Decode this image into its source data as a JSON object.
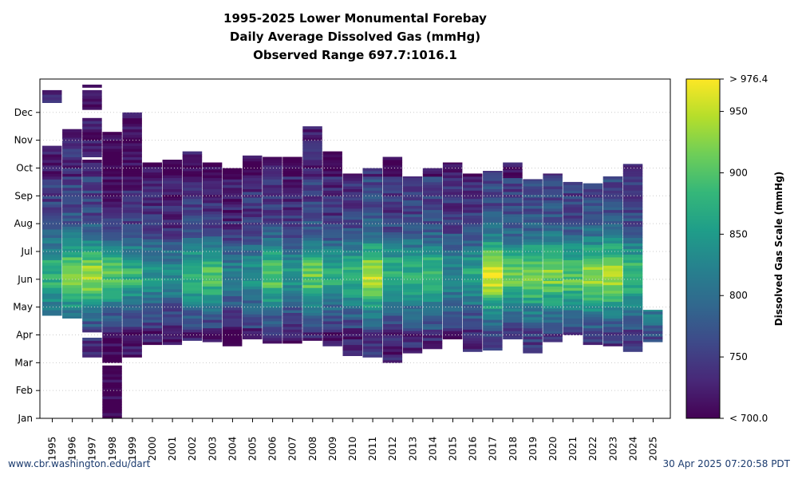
{
  "chart_data": {
    "type": "heatmap",
    "title": [
      "1995-2025 Lower Monumental Forebay",
      "Daily Average Dissolved Gas (mmHg)",
      "Observed Range 697.7:1016.1"
    ],
    "x_categories": [
      "1995",
      "1996",
      "1997",
      "1998",
      "1999",
      "2000",
      "2001",
      "2002",
      "2003",
      "2004",
      "2005",
      "2006",
      "2007",
      "2008",
      "2009",
      "2010",
      "2011",
      "2012",
      "2013",
      "2014",
      "2015",
      "2016",
      "2017",
      "2018",
      "2019",
      "2020",
      "2021",
      "2022",
      "2023",
      "2024",
      "2025"
    ],
    "y_ticks": [
      "Jan",
      "Feb",
      "Mar",
      "Apr",
      "May",
      "Jun",
      "Jul",
      "Aug",
      "Sep",
      "Oct",
      "Nov",
      "Dec"
    ],
    "grid": true,
    "colorbar": {
      "label": "Dissolved Gas Scale (mmHg)",
      "min": 700,
      "max": 976.4,
      "ticks": [
        750,
        800,
        850,
        900,
        950
      ],
      "min_label": "< 700.0",
      "max_label": "> 976.4",
      "colormap": [
        "#440154",
        "#482878",
        "#3e4989",
        "#31688e",
        "#26828e",
        "#1f9e89",
        "#35b779",
        "#6ece58",
        "#b5de2b",
        "#fde725"
      ]
    },
    "years": [
      {
        "year": "1995",
        "start_month": 3.7,
        "end_month": 9.8,
        "base": 790,
        "peak": 880,
        "extra": [
          [
            11.35,
            11.8
          ]
        ]
      },
      {
        "year": "1996",
        "start_month": 3.6,
        "end_month": 10.4,
        "base": 800,
        "peak": 925
      },
      {
        "year": "1997",
        "start_month": 2.2,
        "end_month": 12.0,
        "base": 790,
        "peak": 935,
        "gaps": [
          [
            2.9,
            3.05
          ],
          [
            9.2,
            9.35
          ],
          [
            10.7,
            11.05
          ],
          [
            11.75,
            11.85
          ]
        ]
      },
      {
        "year": "1998",
        "start_month": 0.0,
        "end_month": 10.3,
        "base": 760,
        "peak": 905,
        "gaps": [
          [
            1.85,
            2.0
          ]
        ]
      },
      {
        "year": "1999",
        "start_month": 2.2,
        "end_month": 11.0,
        "base": 770,
        "peak": 880
      },
      {
        "year": "2000",
        "start_month": 2.65,
        "end_month": 9.2,
        "base": 770,
        "peak": 845
      },
      {
        "year": "2001",
        "start_month": 2.65,
        "end_month": 9.3,
        "base": 760,
        "peak": 830
      },
      {
        "year": "2002",
        "start_month": 2.8,
        "end_month": 9.6,
        "base": 780,
        "peak": 880
      },
      {
        "year": "2003",
        "start_month": 2.75,
        "end_month": 9.2,
        "base": 770,
        "peak": 900
      },
      {
        "year": "2004",
        "start_month": 2.6,
        "end_month": 9.0,
        "base": 760,
        "peak": 820
      },
      {
        "year": "2005",
        "start_month": 2.85,
        "end_month": 9.45,
        "base": 780,
        "peak": 840
      },
      {
        "year": "2006",
        "start_month": 2.7,
        "end_month": 9.4,
        "base": 780,
        "peak": 900
      },
      {
        "year": "2007",
        "start_month": 2.7,
        "end_month": 9.4,
        "base": 770,
        "peak": 850
      },
      {
        "year": "2008",
        "start_month": 2.8,
        "end_month": 10.5,
        "base": 790,
        "peak": 910
      },
      {
        "year": "2009",
        "start_month": 2.6,
        "end_month": 9.6,
        "base": 770,
        "peak": 870
      },
      {
        "year": "2010",
        "start_month": 2.25,
        "end_month": 8.8,
        "base": 780,
        "peak": 880
      },
      {
        "year": "2011",
        "start_month": 2.2,
        "end_month": 9.0,
        "base": 800,
        "peak": 945
      },
      {
        "year": "2012",
        "start_month": 2.0,
        "end_month": 9.4,
        "base": 780,
        "peak": 880
      },
      {
        "year": "2013",
        "start_month": 2.35,
        "end_month": 8.7,
        "base": 790,
        "peak": 870
      },
      {
        "year": "2014",
        "start_month": 2.5,
        "end_month": 9.0,
        "base": 790,
        "peak": 890
      },
      {
        "year": "2015",
        "start_month": 2.85,
        "end_month": 9.2,
        "base": 780,
        "peak": 830
      },
      {
        "year": "2016",
        "start_month": 2.4,
        "end_month": 8.8,
        "base": 780,
        "peak": 860
      },
      {
        "year": "2017",
        "start_month": 2.45,
        "end_month": 8.9,
        "base": 800,
        "peak": 960
      },
      {
        "year": "2018",
        "start_month": 2.85,
        "end_month": 9.2,
        "base": 790,
        "peak": 910
      },
      {
        "year": "2019",
        "start_month": 2.35,
        "end_month": 8.6,
        "base": 800,
        "peak": 920
      },
      {
        "year": "2020",
        "start_month": 2.75,
        "end_month": 8.8,
        "base": 800,
        "peak": 920
      },
      {
        "year": "2021",
        "start_month": 3.0,
        "end_month": 8.5,
        "base": 790,
        "peak": 905
      },
      {
        "year": "2022",
        "start_month": 2.65,
        "end_month": 8.45,
        "base": 800,
        "peak": 930
      },
      {
        "year": "2023",
        "start_month": 2.6,
        "end_month": 8.7,
        "base": 800,
        "peak": 940
      },
      {
        "year": "2024",
        "start_month": 2.4,
        "end_month": 9.15,
        "base": 790,
        "peak": 890
      },
      {
        "year": "2025",
        "start_month": 2.75,
        "end_month": 3.9,
        "base": 820,
        "peak": 880
      }
    ]
  },
  "footer": {
    "left": "www.cbr.washington.edu/dart",
    "right": "30 Apr 2025 07:20:58 PDT"
  }
}
